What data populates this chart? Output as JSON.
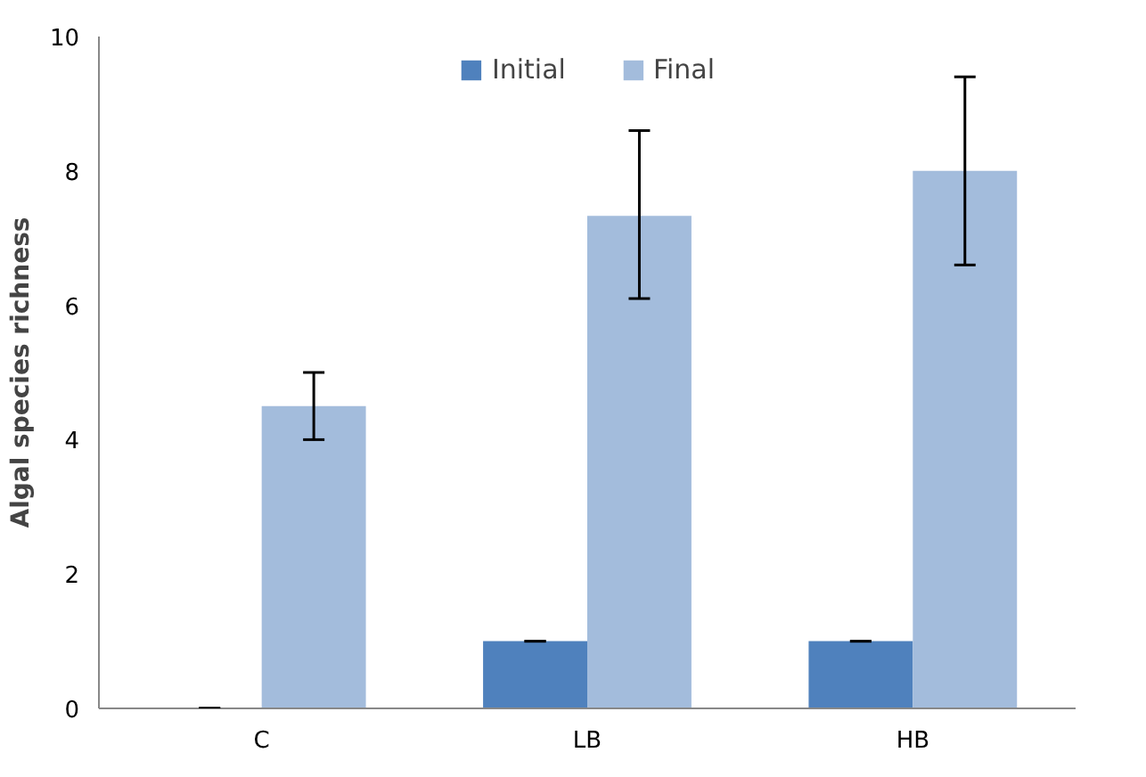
{
  "chart_data": {
    "type": "bar",
    "ylabel": "Algal species richness",
    "categories": [
      "C",
      "LB",
      "HB"
    ],
    "series": [
      {
        "name": "Initial",
        "color": "#4f81bd",
        "values": [
          0,
          1,
          1
        ],
        "errors": [
          0,
          0,
          0
        ]
      },
      {
        "name": "Final",
        "color": "#a3bcdc",
        "values": [
          4.5,
          7.33,
          8
        ],
        "errors": [
          [
            4.0,
            5.0
          ],
          [
            6.1,
            8.6
          ],
          [
            6.6,
            9.4
          ]
        ]
      }
    ],
    "ylim": [
      0,
      10
    ],
    "yticks": [
      0,
      2,
      4,
      6,
      8,
      10
    ],
    "grid": false,
    "legend": "top"
  }
}
